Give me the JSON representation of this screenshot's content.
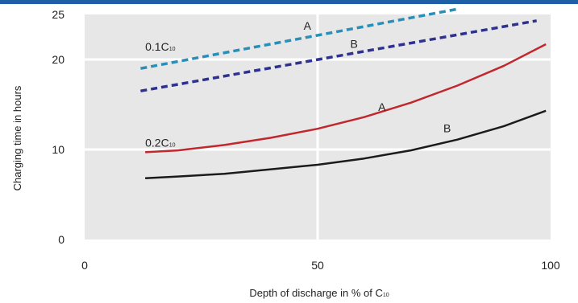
{
  "chart_data": {
    "type": "line",
    "xlabel": "Depth of discharge in % of C",
    "xlabel_subscript": "10",
    "ylabel": "Charging time in hours",
    "xlim": [
      0,
      100
    ],
    "ylim": [
      0,
      25
    ],
    "x_ticks": [
      0,
      50,
      100
    ],
    "y_ticks": [
      0,
      10,
      20,
      25
    ],
    "grid": true,
    "series": [
      {
        "label": "A",
        "group": "0.1C10",
        "color": "#2a8fb8",
        "dash": "dashed",
        "x": [
          12,
          80
        ],
        "y": [
          19.0,
          25.6
        ]
      },
      {
        "label": "B",
        "group": "0.1C10",
        "color": "#2e3190",
        "dash": "dashed",
        "x": [
          12,
          97
        ],
        "y": [
          16.5,
          24.3
        ]
      },
      {
        "label": "A",
        "group": "0.2C10",
        "color": "#c0282d",
        "dash": "solid",
        "x": [
          13,
          20,
          30,
          40,
          50,
          60,
          70,
          80,
          90,
          99
        ],
        "y": [
          9.7,
          9.9,
          10.5,
          11.3,
          12.3,
          13.6,
          15.2,
          17.1,
          19.3,
          21.7
        ]
      },
      {
        "label": "B",
        "group": "0.2C10",
        "color": "#1b1b1b",
        "dash": "solid",
        "x": [
          13,
          20,
          30,
          40,
          50,
          60,
          70,
          80,
          90,
          99
        ],
        "y": [
          6.8,
          7.0,
          7.3,
          7.8,
          8.3,
          9.0,
          9.9,
          11.1,
          12.6,
          14.3
        ]
      }
    ],
    "annotations": [
      {
        "text": "0.1C",
        "sub": "10",
        "x": 13,
        "y": 21.0
      },
      {
        "text": "A",
        "x": 47,
        "y": 23.3
      },
      {
        "text": "B",
        "x": 57,
        "y": 21.3
      },
      {
        "text": "0.2C",
        "sub": "10",
        "x": 13,
        "y": 10.3
      },
      {
        "text": "A",
        "x": 63,
        "y": 14.3
      },
      {
        "text": "B",
        "x": 77,
        "y": 11.9
      }
    ]
  }
}
